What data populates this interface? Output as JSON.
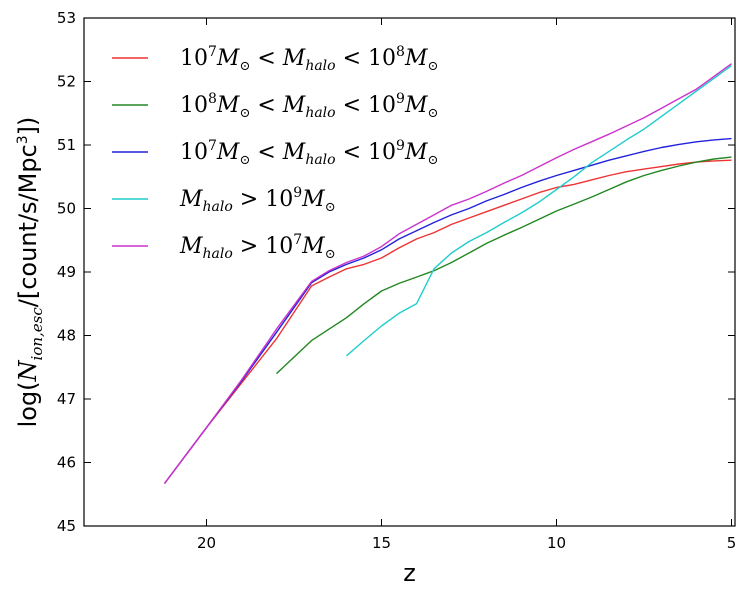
{
  "chart_data": {
    "type": "line",
    "title": "",
    "xlabel": "z",
    "ylabel": "log(Ṅ_{ion,esc}/[count/s/Mpc^3])",
    "ylabel_parts": {
      "prefix": "log(",
      "symbol": "N",
      "subscript": "ion,esc",
      "units": "/[count/s/Mpc",
      "exponent": "3",
      "suffix": "])"
    },
    "xlim": [
      23.5,
      4.9
    ],
    "ylim": [
      45,
      53
    ],
    "xticks": [
      20,
      15,
      10,
      5
    ],
    "yticks": [
      45,
      46,
      47,
      48,
      49,
      50,
      51,
      52,
      53
    ],
    "legend_position": "top-left",
    "series": [
      {
        "name": "10^7 M☉ < M_halo < 10^8 M☉",
        "legend": {
          "a": "10",
          "a_exp": "7",
          "b": "M",
          "b_sub": "⊙",
          "op1": " < ",
          "c": "M",
          "c_sub": "halo",
          "op2": " < ",
          "d": "10",
          "d_exp": "8",
          "e": "M",
          "e_sub": "⊙"
        },
        "color": "#ee3333",
        "x": [
          21.2,
          20,
          19,
          18,
          17,
          16.5,
          16,
          15.5,
          15,
          14.5,
          14,
          13.5,
          13,
          12.5,
          12,
          11.5,
          11,
          10.5,
          10,
          9.5,
          9,
          8.5,
          8,
          7.5,
          7,
          6.5,
          6,
          5.5,
          5
        ],
        "y": [
          45.67,
          46.55,
          47.25,
          47.95,
          48.78,
          48.92,
          49.05,
          49.12,
          49.22,
          49.38,
          49.52,
          49.62,
          49.75,
          49.85,
          49.95,
          50.05,
          50.15,
          50.25,
          50.33,
          50.38,
          50.45,
          50.52,
          50.58,
          50.62,
          50.66,
          50.7,
          50.73,
          50.75,
          50.76
        ]
      },
      {
        "name": "10^8 M☉ < M_halo < 10^9 M☉",
        "legend": {
          "a": "10",
          "a_exp": "8",
          "b": "M",
          "b_sub": "⊙",
          "op1": " < ",
          "c": "M",
          "c_sub": "halo",
          "op2": " < ",
          "d": "10",
          "d_exp": "9",
          "e": "M",
          "e_sub": "⊙"
        },
        "color": "#228822",
        "x": [
          18,
          17,
          16,
          15.5,
          15,
          14.5,
          14,
          13.5,
          13,
          12.5,
          12,
          11.5,
          11,
          10.5,
          10,
          9.5,
          9,
          8.5,
          8,
          7.5,
          7,
          6.5,
          6,
          5.5,
          5
        ],
        "y": [
          47.4,
          47.92,
          48.28,
          48.5,
          48.7,
          48.82,
          48.92,
          49.02,
          49.15,
          49.3,
          49.45,
          49.58,
          49.7,
          49.83,
          49.96,
          50.07,
          50.18,
          50.3,
          50.42,
          50.52,
          50.6,
          50.67,
          50.73,
          50.78,
          50.81
        ]
      },
      {
        "name": "10^7 M☉ < M_halo < 10^9 M☉",
        "legend": {
          "a": "10",
          "a_exp": "7",
          "b": "M",
          "b_sub": "⊙",
          "op1": " < ",
          "c": "M",
          "c_sub": "halo",
          "op2": " < ",
          "d": "10",
          "d_exp": "9",
          "e": "M",
          "e_sub": "⊙"
        },
        "color": "#2222dd",
        "x": [
          21.2,
          20,
          19,
          18,
          17,
          16.5,
          16,
          15.5,
          15,
          14.5,
          14,
          13.5,
          13,
          12.5,
          12,
          11.5,
          11,
          10.5,
          10,
          9.5,
          9,
          8.5,
          8,
          7.5,
          7,
          6.5,
          6,
          5.5,
          5
        ],
        "y": [
          45.67,
          46.55,
          47.28,
          48.05,
          48.83,
          49.0,
          49.12,
          49.22,
          49.35,
          49.52,
          49.65,
          49.78,
          49.9,
          50.0,
          50.12,
          50.22,
          50.33,
          50.43,
          50.52,
          50.6,
          50.68,
          50.76,
          50.83,
          50.9,
          50.96,
          51.01,
          51.05,
          51.08,
          51.1
        ]
      },
      {
        "name": "M_halo > 10^9 M☉",
        "legend": {
          "a": "",
          "a_exp": "",
          "b": "",
          "b_sub": "",
          "op1": "",
          "c": "M",
          "c_sub": "halo",
          "op2": " > ",
          "d": "10",
          "d_exp": "9",
          "e": "M",
          "e_sub": "⊙"
        },
        "color": "#22cccc",
        "x": [
          16,
          15.5,
          15,
          14.5,
          14,
          13.5,
          13,
          12.5,
          12,
          11.5,
          11,
          10.5,
          10,
          9.5,
          9,
          8.5,
          8,
          7.5,
          7,
          6.5,
          6,
          5.5,
          5
        ],
        "y": [
          47.68,
          47.92,
          48.15,
          48.35,
          48.5,
          49.05,
          49.3,
          49.48,
          49.62,
          49.78,
          49.93,
          50.1,
          50.3,
          50.5,
          50.72,
          50.9,
          51.08,
          51.25,
          51.45,
          51.65,
          51.85,
          52.05,
          52.25
        ]
      },
      {
        "name": "M_halo > 10^7 M☉",
        "legend": {
          "a": "",
          "a_exp": "",
          "b": "",
          "b_sub": "",
          "op1": "",
          "c": "M",
          "c_sub": "halo",
          "op2": " > ",
          "d": "10",
          "d_exp": "7",
          "e": "M",
          "e_sub": "⊙"
        },
        "color": "#cc33cc",
        "x": [
          21.2,
          20,
          19,
          18,
          17,
          16.5,
          16,
          15.5,
          15,
          14.5,
          14,
          13.5,
          13,
          12.5,
          12,
          11.5,
          11,
          10.5,
          10,
          9.5,
          9,
          8.5,
          8,
          7.5,
          7,
          6.5,
          6,
          5.5,
          5
        ],
        "y": [
          45.67,
          46.55,
          47.3,
          48.1,
          48.85,
          49.02,
          49.15,
          49.25,
          49.4,
          49.6,
          49.75,
          49.9,
          50.05,
          50.15,
          50.27,
          50.4,
          50.52,
          50.66,
          50.8,
          50.93,
          51.05,
          51.17,
          51.3,
          51.43,
          51.58,
          51.73,
          51.88,
          52.08,
          52.28
        ]
      }
    ]
  }
}
